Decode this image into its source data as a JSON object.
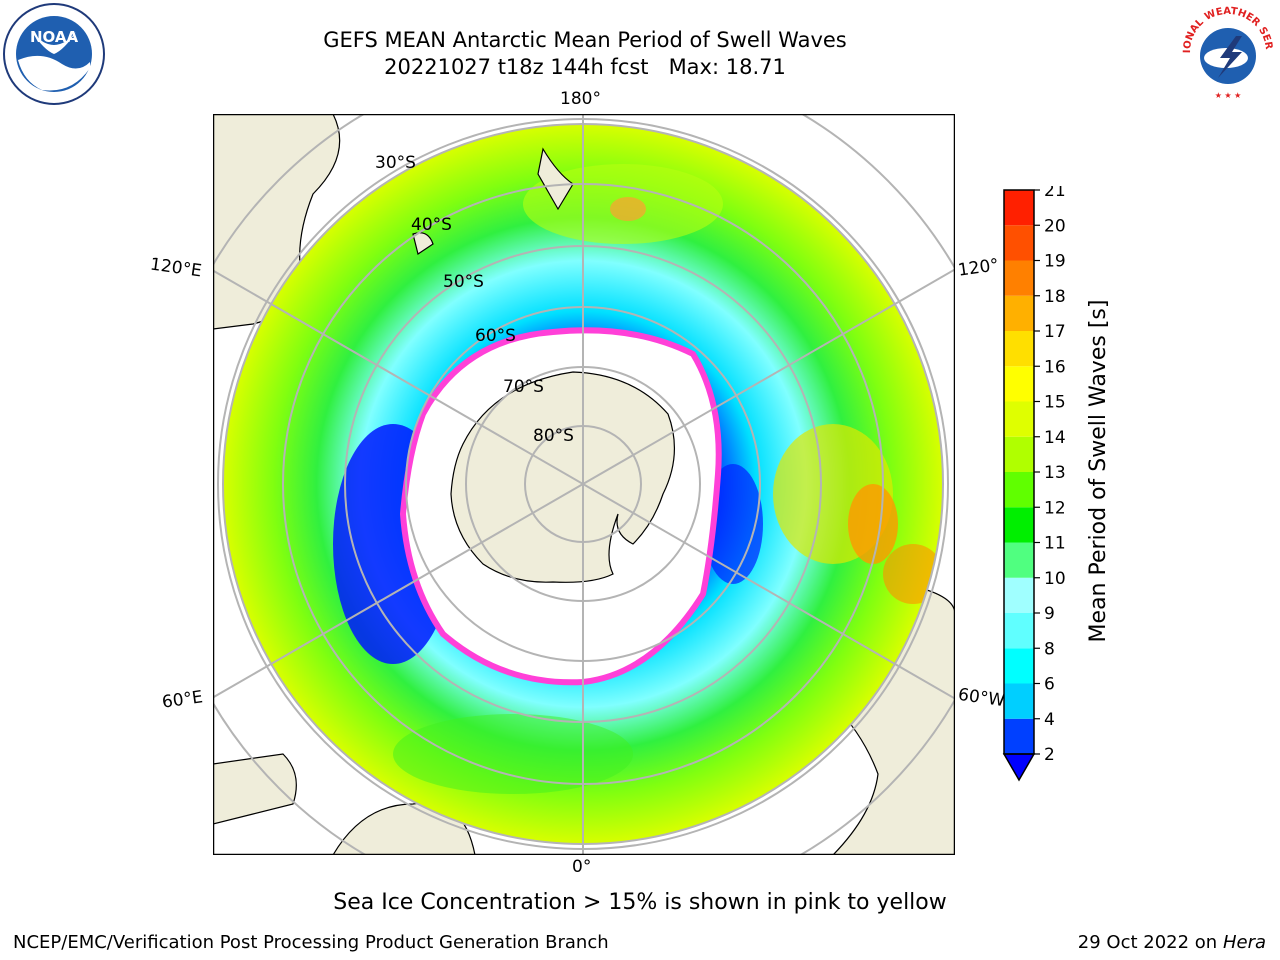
{
  "title": {
    "line1": "GEFS MEAN Antarctic Mean Period of Swell Waves",
    "line2": "20221027 t18z 144h fcst   Max: 18.71"
  },
  "map": {
    "projection": "south-polar-stereographic",
    "longitude_labels": {
      "top": "180°",
      "bottom": "0°",
      "upper_left": "120°E",
      "lower_left": "60°E",
      "upper_right": "120°",
      "lower_right": "60°W"
    },
    "latitude_labels": [
      "30°S",
      "40°S",
      "50°S",
      "60°S",
      "70°S",
      "80°S"
    ],
    "colors": {
      "land": "#efedda",
      "grid": "#b4b4b4",
      "coast": "#000000",
      "sea_ice": "#ff44dd"
    }
  },
  "colorbar": {
    "label": "Mean Period of Swell Waves [s]",
    "ticks": [
      "2",
      "4",
      "6",
      "8",
      "9",
      "10",
      "11",
      "12",
      "13",
      "14",
      "15",
      "16",
      "17",
      "18",
      "19",
      "20",
      "21"
    ],
    "colors": [
      "#0040ff",
      "#00cfff",
      "#00ffff",
      "#60ffff",
      "#a0ffff",
      "#50ff80",
      "#00ef00",
      "#60ff00",
      "#b0ff00",
      "#dfff00",
      "#ffff00",
      "#ffdf00",
      "#ffb000",
      "#ff8000",
      "#ff5000",
      "#ff2000"
    ],
    "extend_color": "#0000ff"
  },
  "caption": "Sea Ice Concentration > 15% is shown in pink to yellow",
  "footer": {
    "left": "NCEP/EMC/Verification Post Processing Product Generation Branch",
    "right_prefix": "29 Oct 2022 on ",
    "right_machine": "Hera"
  },
  "logos": {
    "left": "NOAA",
    "right": "NATIONAL WEATHER SERVICE"
  }
}
